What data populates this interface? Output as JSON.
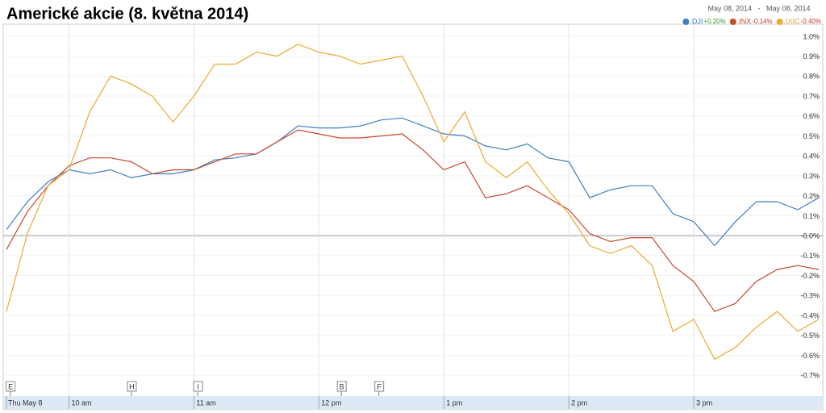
{
  "chart_data": {
    "type": "line",
    "title": "Americké akcie (8. května 2014)",
    "date_range": [
      "May 08, 2014",
      "-",
      "May 08, 2014"
    ],
    "x": [
      9.5,
      9.667,
      9.833,
      10,
      10.167,
      10.333,
      10.5,
      10.667,
      10.833,
      11,
      11.167,
      11.333,
      11.5,
      11.667,
      11.833,
      12,
      12.167,
      12.333,
      12.5,
      12.667,
      12.833,
      13,
      13.167,
      13.333,
      13.5,
      13.667,
      13.833,
      14,
      14.167,
      14.333,
      14.5,
      14.667,
      14.833,
      15,
      15.167,
      15.333,
      15.5,
      15.667,
      15.833,
      16
    ],
    "series": [
      {
        "name": ".DJI",
        "change": "+0.20%",
        "color": "#3d7fc4",
        "change_color": "#2e9a2e",
        "values": [
          0.03,
          0.17,
          0.27,
          0.33,
          0.31,
          0.33,
          0.29,
          0.31,
          0.31,
          0.33,
          0.38,
          0.39,
          0.41,
          0.47,
          0.55,
          0.54,
          0.54,
          0.55,
          0.58,
          0.59,
          0.55,
          0.51,
          0.5,
          0.45,
          0.43,
          0.46,
          0.39,
          0.37,
          0.19,
          0.23,
          0.25,
          0.25,
          0.11,
          0.07,
          -0.05,
          0.07,
          0.17,
          0.17,
          0.13,
          0.19
        ]
      },
      {
        "name": ".INX",
        "change": "-0.14%",
        "color": "#c8492c",
        "change_color": "#cc3333",
        "values": [
          -0.07,
          0.12,
          0.25,
          0.35,
          0.39,
          0.39,
          0.37,
          0.31,
          0.33,
          0.33,
          0.37,
          0.41,
          0.41,
          0.47,
          0.53,
          0.51,
          0.49,
          0.49,
          0.5,
          0.51,
          0.43,
          0.33,
          0.37,
          0.19,
          0.21,
          0.25,
          0.19,
          0.13,
          0.01,
          -0.03,
          -0.01,
          -0.01,
          -0.15,
          -0.23,
          -0.38,
          -0.34,
          -0.23,
          -0.17,
          -0.15,
          -0.17
        ]
      },
      {
        "name": ".IXIC",
        "change": "-0.40%",
        "color": "#f0a830",
        "change_color": "#cc3333",
        "values": [
          -0.38,
          0.01,
          0.25,
          0.33,
          0.62,
          0.8,
          0.76,
          0.7,
          0.57,
          0.7,
          0.86,
          0.86,
          0.92,
          0.9,
          0.96,
          0.92,
          0.9,
          0.86,
          0.88,
          0.9,
          0.7,
          0.47,
          0.62,
          0.37,
          0.29,
          0.37,
          0.23,
          0.11,
          -0.05,
          -0.09,
          -0.05,
          -0.15,
          -0.48,
          -0.42,
          -0.62,
          -0.56,
          -0.46,
          -0.38,
          -0.48,
          -0.42
        ]
      }
    ],
    "xlim": [
      9.5,
      16
    ],
    "xticks": [
      {
        "value": 9.5,
        "label": "Thu May 8"
      },
      {
        "value": 10,
        "label": "10 am"
      },
      {
        "value": 11,
        "label": "11 am"
      },
      {
        "value": 12,
        "label": "12 pm"
      },
      {
        "value": 13,
        "label": "1 pm"
      },
      {
        "value": 14,
        "label": "2 pm"
      },
      {
        "value": 15,
        "label": "3 pm"
      }
    ],
    "ylim": [
      -0.76,
      1.04
    ],
    "yticks": [
      {
        "value": 1.0,
        "label": "1.0%"
      },
      {
        "value": 0.9,
        "label": "0.9%"
      },
      {
        "value": 0.8,
        "label": "0.8%"
      },
      {
        "value": 0.7,
        "label": "0.7%"
      },
      {
        "value": 0.6,
        "label": "0.6%"
      },
      {
        "value": 0.5,
        "label": "0.5%"
      },
      {
        "value": 0.4,
        "label": "0.4%"
      },
      {
        "value": 0.3,
        "label": "0.3%"
      },
      {
        "value": 0.2,
        "label": "0.2%"
      },
      {
        "value": 0.1,
        "label": "0.1%"
      },
      {
        "value": 0,
        "label": "-0.0%"
      },
      {
        "value": -0.1,
        "label": "-0.1%"
      },
      {
        "value": -0.2,
        "label": "-0.2%"
      },
      {
        "value": -0.3,
        "label": "-0.3%"
      },
      {
        "value": -0.4,
        "label": "-0.4%"
      },
      {
        "value": -0.5,
        "label": "-0.5%"
      },
      {
        "value": -0.6,
        "label": "-0.6%"
      },
      {
        "value": -0.7,
        "label": "-0.7%"
      }
    ],
    "annotations": [
      {
        "text": "E",
        "x": 9.53
      },
      {
        "text": "H",
        "x": 10.5
      },
      {
        "text": "I",
        "x": 11.03
      },
      {
        "text": "B",
        "x": 12.18
      },
      {
        "text": "F",
        "x": 12.48
      }
    ]
  }
}
